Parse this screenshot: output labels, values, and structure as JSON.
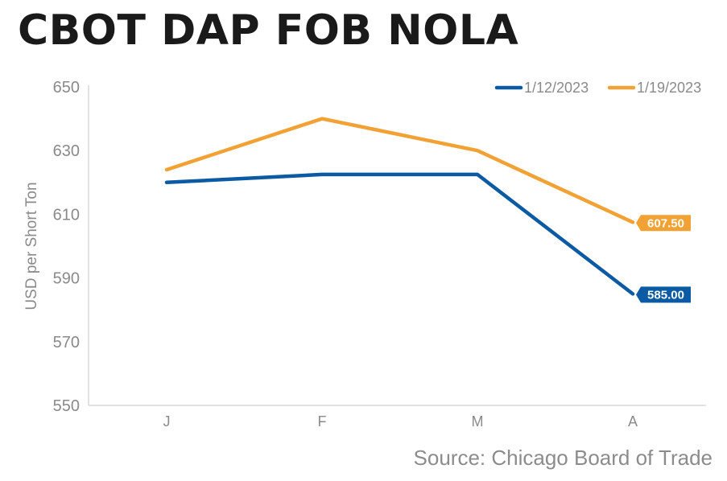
{
  "title": "CBOT DAP FOB NOLA",
  "source": "Source: Chicago Board of Trade",
  "chart_data": {
    "type": "line",
    "categories": [
      "J",
      "F",
      "M",
      "A"
    ],
    "ylabel": "USD per Short Ton",
    "ylim": [
      550,
      650
    ],
    "yticks": [
      "650",
      "630",
      "610",
      "590",
      "570",
      "550"
    ],
    "ytick_values": [
      650,
      630,
      610,
      590,
      570,
      550
    ],
    "legend_position": "top-right",
    "grid": false,
    "series": [
      {
        "name": "1/12/2023",
        "color": "#0b5aa3",
        "values": [
          620,
          622.5,
          622.5,
          585
        ],
        "end_label": "585.00"
      },
      {
        "name": "1/19/2023",
        "color": "#f2a134",
        "values": [
          624,
          640,
          630,
          607.5
        ],
        "end_label": "607.50"
      }
    ]
  }
}
